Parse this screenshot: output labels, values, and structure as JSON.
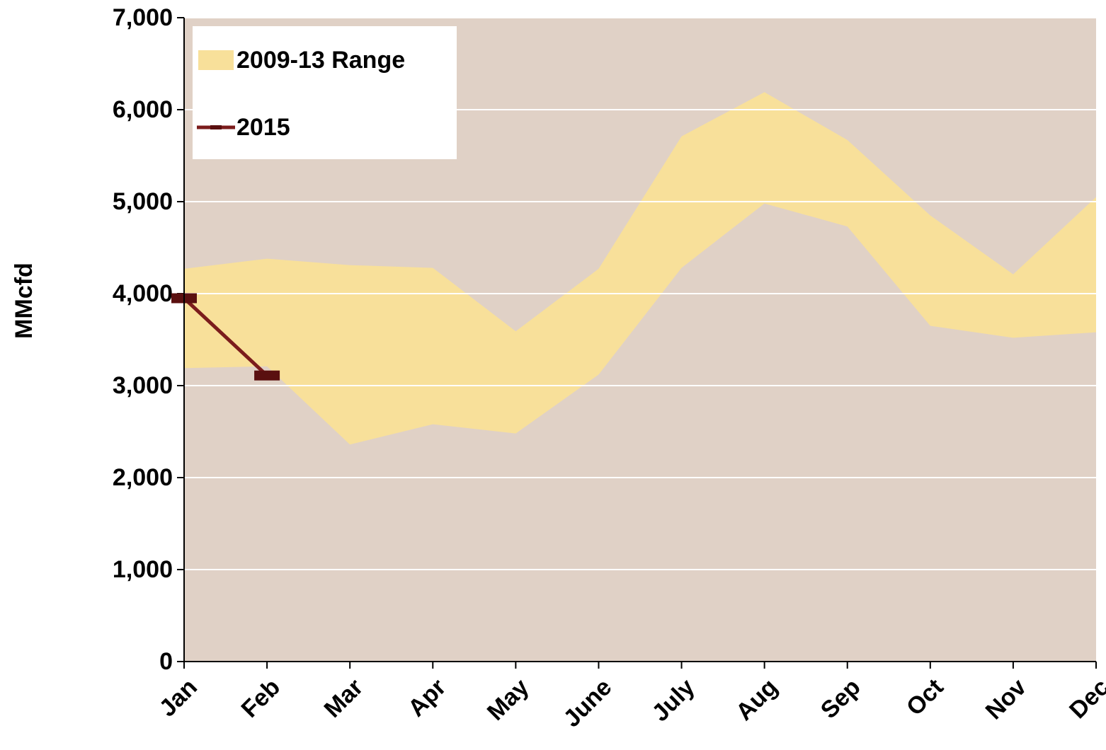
{
  "chart_data": {
    "type": "range-line",
    "y_label": "MMcfd",
    "categories": [
      "Jan",
      "Feb",
      "Mar",
      "Apr",
      "May",
      "June",
      "July",
      "Aug",
      "Sep",
      "Oct",
      "Nov",
      "Dec"
    ],
    "series": [
      {
        "name": "2009-13 Range",
        "color": "#f8e09a",
        "low": [
          3190,
          3210,
          2360,
          2580,
          2480,
          3120,
          4280,
          4980,
          4730,
          3650,
          3520,
          3580
        ],
        "high": [
          4270,
          4380,
          4310,
          4280,
          3590,
          4270,
          5710,
          6190,
          5670,
          4850,
          4210,
          5050
        ]
      },
      {
        "name": "2015",
        "color": "#7b1c1c",
        "marker_color": "#5a1010",
        "values": [
          3950,
          3110,
          null,
          null,
          null,
          null,
          null,
          null,
          null,
          null,
          null,
          null
        ]
      }
    ],
    "ylim": [
      0,
      7000
    ],
    "yticks": [
      0,
      {
        "value": 1000,
        "label": "1,000"
      },
      {
        "value": 2000,
        "label": "2,000"
      },
      {
        "value": 3000,
        "label": "3,000"
      },
      {
        "value": 4000,
        "label": "4,000"
      },
      {
        "value": 5000,
        "label": "5,000"
      },
      {
        "value": 6000,
        "label": "6,000"
      },
      {
        "value": 7000,
        "label": "7,000"
      }
    ],
    "grid": true,
    "plot_background": "#e0d1c6",
    "legend": "top-left"
  }
}
